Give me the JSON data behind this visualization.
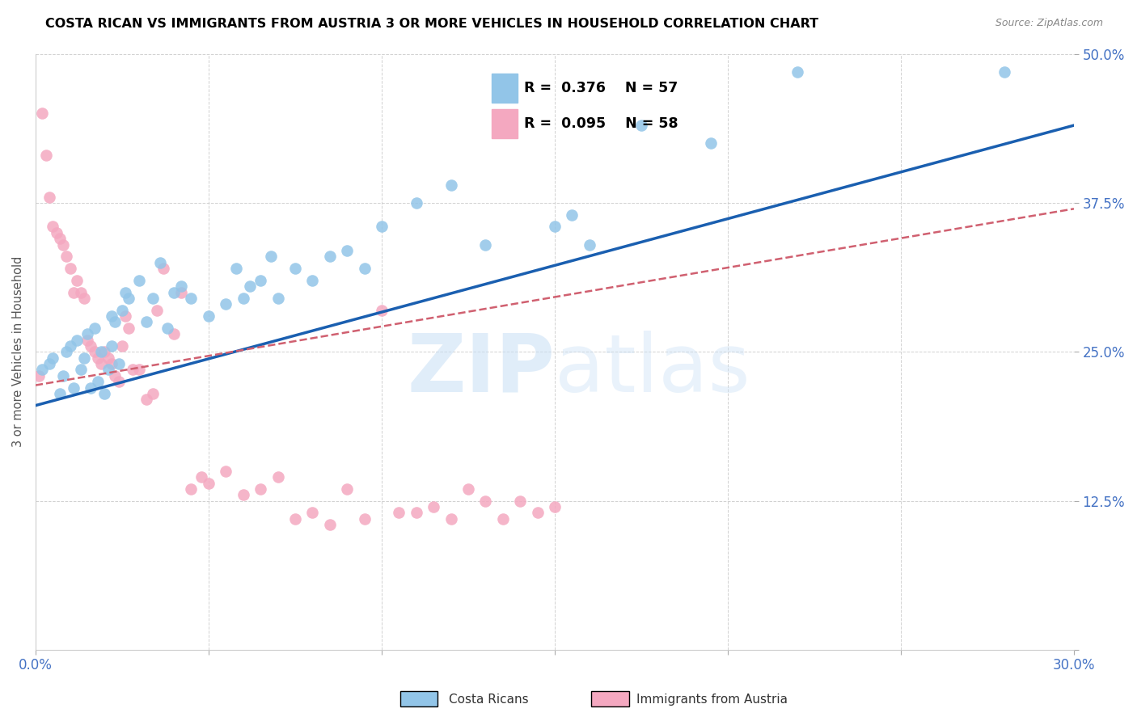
{
  "title": "COSTA RICAN VS IMMIGRANTS FROM AUSTRIA 3 OR MORE VEHICLES IN HOUSEHOLD CORRELATION CHART",
  "source": "Source: ZipAtlas.com",
  "ylabel": "3 or more Vehicles in Household",
  "xmin": 0.0,
  "xmax": 0.3,
  "ymin": 0.0,
  "ymax": 0.5,
  "xticks": [
    0.0,
    0.05,
    0.1,
    0.15,
    0.2,
    0.25,
    0.3
  ],
  "yticks": [
    0.0,
    0.125,
    0.25,
    0.375,
    0.5
  ],
  "ytick_labels": [
    "",
    "12.5%",
    "25.0%",
    "37.5%",
    "50.0%"
  ],
  "xtick_labels": [
    "0.0%",
    "",
    "",
    "",
    "",
    "",
    "30.0%"
  ],
  "legend_r_blue": "0.376",
  "legend_n_blue": "57",
  "legend_r_pink": "0.095",
  "legend_n_pink": "58",
  "legend_label_blue": "Costa Ricans",
  "legend_label_pink": "Immigrants from Austria",
  "blue_color": "#92C5E8",
  "pink_color": "#F4A8C0",
  "blue_line_color": "#1A5FB0",
  "pink_line_color": "#D06070",
  "watermark_zip": "ZIP",
  "watermark_atlas": "atlas",
  "blue_scatter_x": [
    0.002,
    0.004,
    0.005,
    0.007,
    0.008,
    0.009,
    0.01,
    0.011,
    0.012,
    0.013,
    0.014,
    0.015,
    0.016,
    0.017,
    0.018,
    0.019,
    0.02,
    0.021,
    0.022,
    0.022,
    0.023,
    0.024,
    0.025,
    0.026,
    0.027,
    0.03,
    0.032,
    0.034,
    0.036,
    0.038,
    0.04,
    0.042,
    0.045,
    0.05,
    0.055,
    0.058,
    0.06,
    0.062,
    0.065,
    0.068,
    0.07,
    0.075,
    0.08,
    0.085,
    0.09,
    0.095,
    0.1,
    0.11,
    0.12,
    0.13,
    0.15,
    0.155,
    0.16,
    0.175,
    0.195,
    0.22,
    0.28
  ],
  "blue_scatter_y": [
    0.235,
    0.24,
    0.245,
    0.215,
    0.23,
    0.25,
    0.255,
    0.22,
    0.26,
    0.235,
    0.245,
    0.265,
    0.22,
    0.27,
    0.225,
    0.25,
    0.215,
    0.235,
    0.28,
    0.255,
    0.275,
    0.24,
    0.285,
    0.3,
    0.295,
    0.31,
    0.275,
    0.295,
    0.325,
    0.27,
    0.3,
    0.305,
    0.295,
    0.28,
    0.29,
    0.32,
    0.295,
    0.305,
    0.31,
    0.33,
    0.295,
    0.32,
    0.31,
    0.33,
    0.335,
    0.32,
    0.355,
    0.375,
    0.39,
    0.34,
    0.355,
    0.365,
    0.34,
    0.44,
    0.425,
    0.485,
    0.485
  ],
  "pink_scatter_x": [
    0.001,
    0.002,
    0.003,
    0.004,
    0.005,
    0.006,
    0.007,
    0.008,
    0.009,
    0.01,
    0.011,
    0.012,
    0.013,
    0.014,
    0.015,
    0.016,
    0.017,
    0.018,
    0.019,
    0.02,
    0.021,
    0.022,
    0.023,
    0.024,
    0.025,
    0.026,
    0.027,
    0.028,
    0.03,
    0.032,
    0.034,
    0.035,
    0.037,
    0.04,
    0.042,
    0.045,
    0.048,
    0.05,
    0.055,
    0.06,
    0.065,
    0.07,
    0.075,
    0.08,
    0.085,
    0.09,
    0.095,
    0.1,
    0.105,
    0.11,
    0.115,
    0.12,
    0.125,
    0.13,
    0.135,
    0.14,
    0.145,
    0.15
  ],
  "pink_scatter_y": [
    0.23,
    0.45,
    0.415,
    0.38,
    0.355,
    0.35,
    0.345,
    0.34,
    0.33,
    0.32,
    0.3,
    0.31,
    0.3,
    0.295,
    0.26,
    0.255,
    0.25,
    0.245,
    0.24,
    0.25,
    0.245,
    0.24,
    0.23,
    0.225,
    0.255,
    0.28,
    0.27,
    0.235,
    0.235,
    0.21,
    0.215,
    0.285,
    0.32,
    0.265,
    0.3,
    0.135,
    0.145,
    0.14,
    0.15,
    0.13,
    0.135,
    0.145,
    0.11,
    0.115,
    0.105,
    0.135,
    0.11,
    0.285,
    0.115,
    0.115,
    0.12,
    0.11,
    0.135,
    0.125,
    0.11,
    0.125,
    0.115,
    0.12
  ]
}
